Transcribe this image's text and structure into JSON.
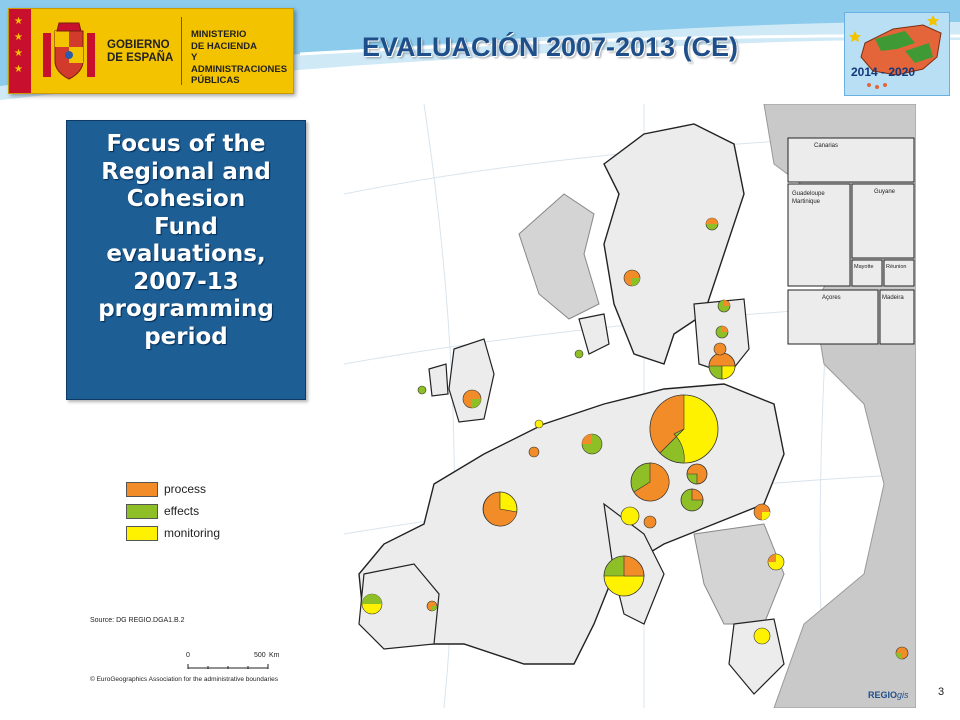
{
  "header": {
    "title": "EVALUACIÓN 2007-2013 (CE)",
    "government_logo": {
      "name_lines": [
        "GOBIERNO",
        "DE ESPAÑA"
      ],
      "ministry_lines": [
        "MINISTERIO",
        "DE HACIENDA",
        "Y ADMINISTRACIONES",
        "PÚBLICAS"
      ]
    },
    "programme_badge": {
      "label": "2014 - 2020"
    }
  },
  "focus_box": {
    "lines": [
      "Focus of the",
      "Regional and",
      "Cohesion",
      "Fund",
      "evaluations,",
      "2007-13",
      "programming",
      "period"
    ]
  },
  "legend": {
    "items": [
      {
        "label": "process",
        "color": "#f28c28"
      },
      {
        "label": "effects",
        "color": "#8fbf26"
      },
      {
        "label": "monitoring",
        "color": "#fff200"
      }
    ]
  },
  "source": "Source: DG REGIO.DGA1.B.2",
  "scale": {
    "start": "0",
    "end": "500",
    "unit": "Km"
  },
  "copyright": "© EuroGeographics Association for the administrative boundaries",
  "map": {
    "inset_labels": [
      "Canarias",
      "Guadeloupe",
      "Martinique",
      "Guyane",
      "Mayotte",
      "Réunion",
      "Açores",
      "Madeira"
    ],
    "brand": "REGIO",
    "brand_suffix": "gis"
  },
  "colors": {
    "title": "#1f4f8a",
    "focus_box": "#1d5e94",
    "process": "#f28c28",
    "effects": "#8fbf26",
    "monitoring": "#fff200",
    "land": "#ececec",
    "sea": "#ffffff",
    "non_eu": "#c9c9c9"
  },
  "page_number": "3"
}
